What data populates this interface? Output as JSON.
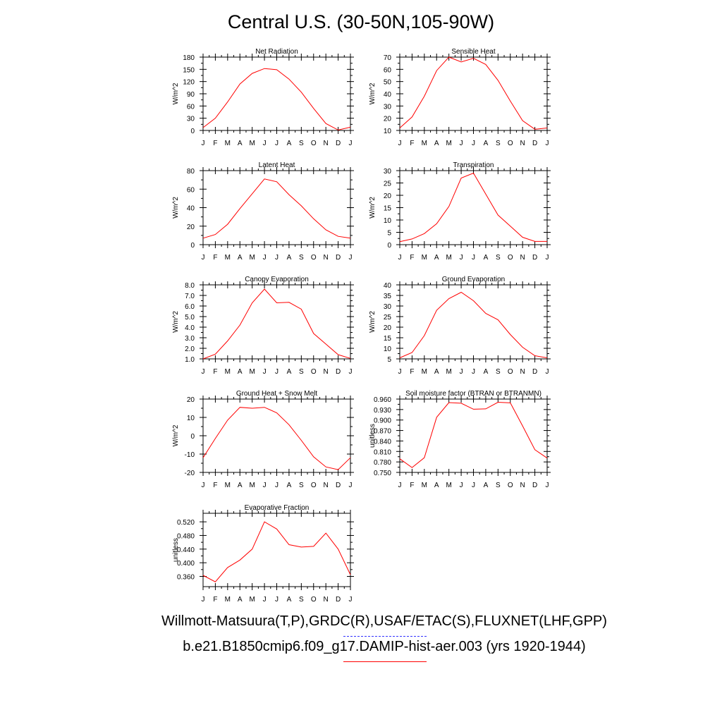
{
  "title": "Central U.S. (30-50N,105-90W)",
  "legend": {
    "observations_label": "Willmott-Matsuura(T,P),GRDC(R),USAF/ETAC(S),FLUXNET(LHF,GPP)",
    "model_label": "b.e21.B1850cmip6.f09_g17.DAMIP-hist-aer.003 (yrs 1920-1944)",
    "observations_color": "#3333ff",
    "model_color": "#ff0000"
  },
  "chart_data": [
    {
      "type": "line",
      "title": "Net Radiation",
      "ylabel": "W/m^2",
      "categories": [
        "J",
        "F",
        "M",
        "A",
        "M",
        "J",
        "J",
        "A",
        "S",
        "O",
        "N",
        "D",
        "J"
      ],
      "ylim": [
        0,
        180
      ],
      "yticks": [
        0,
        30,
        60,
        90,
        120,
        150,
        180
      ],
      "ytick_labels": [
        "0",
        "30",
        "60",
        "90",
        "120",
        "150",
        "180"
      ],
      "series": [
        {
          "color": "#ff0000",
          "values": [
            7,
            30,
            70,
            114,
            140,
            152,
            149,
            126,
            94,
            54,
            17,
            1,
            8
          ]
        }
      ]
    },
    {
      "type": "line",
      "title": "Sensible Heat",
      "ylabel": "W/m^2",
      "categories": [
        "J",
        "F",
        "M",
        "A",
        "M",
        "J",
        "J",
        "A",
        "S",
        "O",
        "N",
        "D",
        "J"
      ],
      "ylim": [
        10,
        70
      ],
      "yticks": [
        10,
        20,
        30,
        40,
        50,
        60,
        70
      ],
      "ytick_labels": [
        "10",
        "20",
        "30",
        "40",
        "50",
        "60",
        "70"
      ],
      "series": [
        {
          "color": "#ff0000",
          "values": [
            12,
            21,
            38,
            59,
            70,
            66,
            69,
            64,
            51,
            34,
            18,
            11,
            12
          ]
        }
      ]
    },
    {
      "type": "line",
      "title": "Latent Heat",
      "ylabel": "W/m^2",
      "categories": [
        "J",
        "F",
        "M",
        "A",
        "M",
        "J",
        "J",
        "A",
        "S",
        "O",
        "N",
        "D",
        "J"
      ],
      "ylim": [
        0,
        80
      ],
      "yticks": [
        0,
        20,
        40,
        60,
        80
      ],
      "ytick_labels": [
        "0",
        "20",
        "40",
        "60",
        "80"
      ],
      "series": [
        {
          "color": "#ff0000",
          "values": [
            7,
            11,
            22,
            39,
            55,
            71,
            68,
            54,
            42,
            28,
            16,
            9,
            7
          ]
        }
      ]
    },
    {
      "type": "line",
      "title": "Transpiration",
      "ylabel": "W/m^2",
      "categories": [
        "J",
        "F",
        "M",
        "A",
        "M",
        "J",
        "J",
        "A",
        "S",
        "O",
        "N",
        "D",
        "J"
      ],
      "ylim": [
        0,
        30
      ],
      "yticks": [
        0,
        5,
        10,
        15,
        20,
        25,
        30
      ],
      "ytick_labels": [
        "0",
        "5",
        "10",
        "15",
        "20",
        "25",
        "30"
      ],
      "series": [
        {
          "color": "#ff0000",
          "values": [
            1.2,
            2.3,
            4.5,
            8.5,
            15.5,
            27,
            29,
            20.5,
            12,
            7.5,
            3,
            1.3,
            1.3
          ]
        }
      ]
    },
    {
      "type": "line",
      "title": "Canopy Evaporation",
      "ylabel": "W/m^2",
      "categories": [
        "J",
        "F",
        "M",
        "A",
        "M",
        "J",
        "J",
        "A",
        "S",
        "O",
        "N",
        "D",
        "J"
      ],
      "ylim": [
        1.0,
        8.0
      ],
      "yticks": [
        1,
        2,
        3,
        4,
        5,
        6,
        7,
        8
      ],
      "ytick_labels": [
        "1.0",
        "2.0",
        "3.0",
        "4.0",
        "5.0",
        "6.0",
        "7.0",
        "8.0"
      ],
      "series": [
        {
          "color": "#ff0000",
          "values": [
            1.0,
            1.45,
            2.7,
            4.2,
            6.3,
            7.6,
            6.3,
            6.35,
            5.7,
            3.4,
            2.4,
            1.4,
            1.05
          ]
        }
      ]
    },
    {
      "type": "line",
      "title": "Ground Evaporation",
      "ylabel": "W/m^2",
      "categories": [
        "J",
        "F",
        "M",
        "A",
        "M",
        "J",
        "J",
        "A",
        "S",
        "O",
        "N",
        "D",
        "J"
      ],
      "ylim": [
        5,
        40
      ],
      "yticks": [
        5,
        10,
        15,
        20,
        25,
        30,
        35,
        40
      ],
      "ytick_labels": [
        "5",
        "10",
        "15",
        "20",
        "25",
        "30",
        "35",
        "40"
      ],
      "series": [
        {
          "color": "#ff0000",
          "values": [
            5.5,
            8,
            16,
            28,
            33.5,
            36.5,
            32.5,
            26.5,
            23.5,
            16.5,
            10.5,
            6.5,
            5.5
          ]
        }
      ]
    },
    {
      "type": "line",
      "title": "Ground Heat + Snow Melt",
      "ylabel": "W/m^2",
      "categories": [
        "J",
        "F",
        "M",
        "A",
        "M",
        "J",
        "J",
        "A",
        "S",
        "O",
        "N",
        "D",
        "J"
      ],
      "ylim": [
        -20,
        20
      ],
      "yticks": [
        -20,
        -10,
        0,
        10,
        20
      ],
      "ytick_labels": [
        "-20",
        "-10",
        "0",
        "10",
        "20"
      ],
      "series": [
        {
          "color": "#ff0000",
          "values": [
            -12,
            -1.5,
            8.5,
            15.5,
            15,
            15.5,
            12.5,
            6,
            -2.5,
            -11.5,
            -17,
            -18.5,
            -12
          ]
        }
      ]
    },
    {
      "type": "line",
      "title": "Soil moisture factor (BTRAN or BTRANMN)",
      "ylabel": "unitless",
      "categories": [
        "J",
        "F",
        "M",
        "A",
        "M",
        "J",
        "J",
        "A",
        "S",
        "O",
        "N",
        "D",
        "J"
      ],
      "ylim": [
        0.75,
        0.96
      ],
      "yticks": [
        0.75,
        0.78,
        0.81,
        0.84,
        0.87,
        0.9,
        0.93,
        0.96
      ],
      "ytick_labels": [
        "0.750",
        "0.780",
        "0.810",
        "0.840",
        "0.870",
        "0.900",
        "0.930",
        "0.960"
      ],
      "series": [
        {
          "color": "#ff0000",
          "values": [
            0.789,
            0.764,
            0.792,
            0.908,
            0.95,
            0.948,
            0.931,
            0.932,
            0.951,
            0.949,
            0.883,
            0.815,
            0.791
          ]
        }
      ]
    },
    {
      "type": "line",
      "title": "Evaporative Fraction",
      "ylabel": "unitless",
      "categories": [
        "J",
        "F",
        "M",
        "A",
        "M",
        "J",
        "J",
        "A",
        "S",
        "O",
        "N",
        "D",
        "J"
      ],
      "ylim": [
        0.33,
        0.545
      ],
      "yticks": [
        0.36,
        0.4,
        0.44,
        0.48,
        0.52
      ],
      "ytick_labels": [
        "0.360",
        "0.400",
        "0.440",
        "0.480",
        "0.520"
      ],
      "series": [
        {
          "color": "#ff0000",
          "values": [
            0.363,
            0.344,
            0.386,
            0.408,
            0.44,
            0.52,
            0.499,
            0.453,
            0.446,
            0.448,
            0.487,
            0.44,
            0.365
          ]
        }
      ]
    }
  ]
}
